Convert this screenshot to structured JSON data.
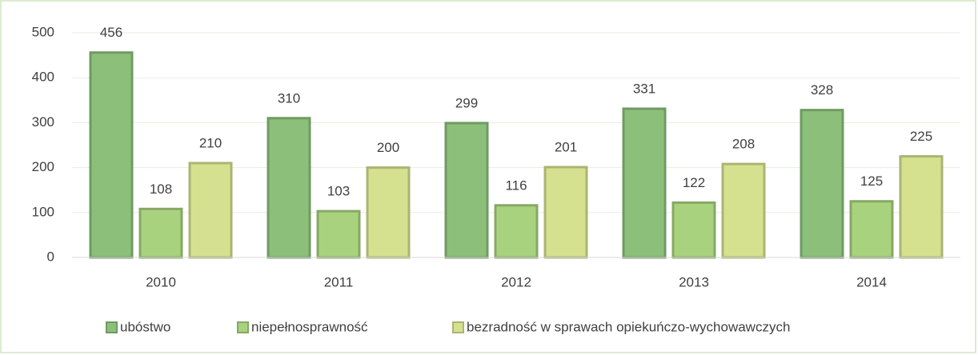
{
  "chart_data": {
    "type": "bar",
    "categories": [
      "2010",
      "2011",
      "2012",
      "2013",
      "2014"
    ],
    "series": [
      {
        "name": "ubóstwo",
        "color": "#8cc07a",
        "values": [
          456,
          310,
          299,
          331,
          328
        ]
      },
      {
        "name": "niepełnosprawność",
        "color": "#a9d27e",
        "values": [
          108,
          103,
          116,
          122,
          125
        ]
      },
      {
        "name": "bezradność w sprawach opiekuńczo-wychowawczych",
        "color": "#d6e190",
        "values": [
          210,
          200,
          201,
          208,
          225
        ]
      }
    ],
    "ylim": [
      0,
      500
    ],
    "yticks": [
      0,
      100,
      200,
      300,
      400,
      500
    ],
    "grid": true,
    "legend": "bottom"
  }
}
